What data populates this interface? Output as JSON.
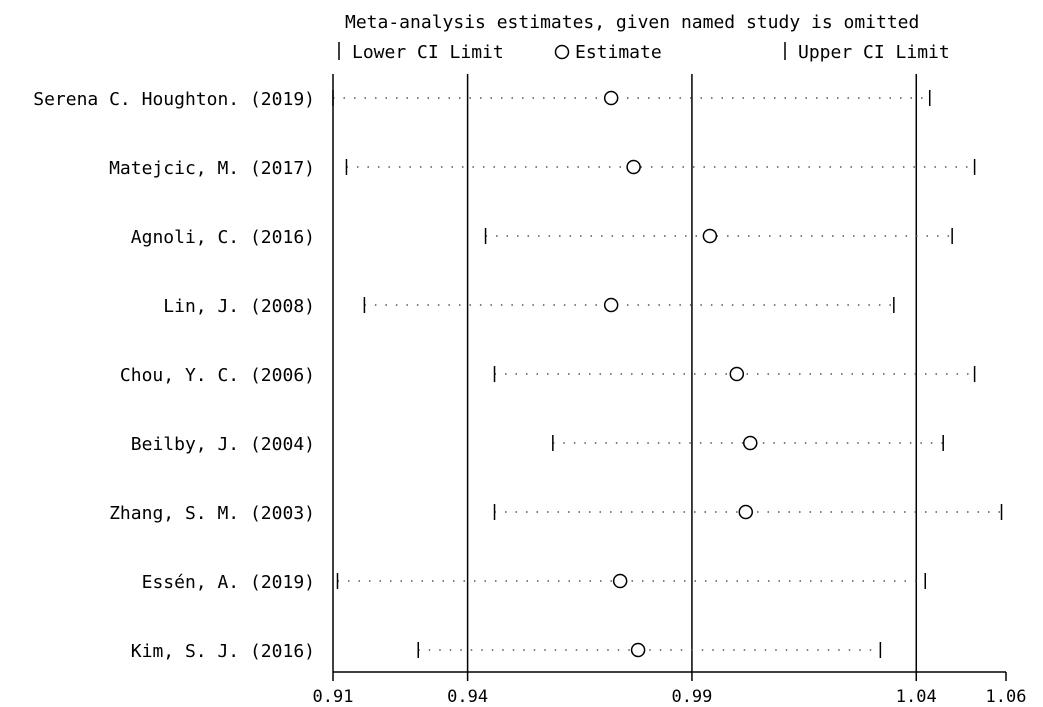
{
  "chart_data": {
    "type": "forest",
    "title": "Meta-analysis estimates, given named study is omitted",
    "legend": {
      "lower_label": "Lower CI Limit",
      "estimate_label": "Estimate",
      "upper_label": "Upper CI Limit"
    },
    "xlim": [
      0.91,
      1.06
    ],
    "x_ticks": [
      0.91,
      0.94,
      0.99,
      1.04,
      1.06
    ],
    "x_tick_labels": [
      "0.91",
      "0.94",
      "0.99",
      "1.04",
      "1.06"
    ],
    "reference_lines": [
      0.94,
      0.99,
      1.04
    ],
    "studies": [
      {
        "label": "Serena C. Houghton. (2019)",
        "lower": 0.91,
        "estimate": 0.972,
        "upper": 1.043
      },
      {
        "label": "Matejcic, M. (2017)",
        "lower": 0.913,
        "estimate": 0.977,
        "upper": 1.053
      },
      {
        "label": "Agnoli, C. (2016)",
        "lower": 0.944,
        "estimate": 0.994,
        "upper": 1.048
      },
      {
        "label": "Lin, J. (2008)",
        "lower": 0.917,
        "estimate": 0.972,
        "upper": 1.035
      },
      {
        "label": "Chou, Y. C. (2006)",
        "lower": 0.946,
        "estimate": 1.0,
        "upper": 1.053
      },
      {
        "label": "Beilby, J. (2004)",
        "lower": 0.959,
        "estimate": 1.003,
        "upper": 1.046
      },
      {
        "label": "Zhang, S. M. (2003)",
        "lower": 0.946,
        "estimate": 1.002,
        "upper": 1.059
      },
      {
        "label": "Essén, A. (2019)",
        "lower": 0.911,
        "estimate": 0.974,
        "upper": 1.042
      },
      {
        "label": "Kim, S. J. (2016)",
        "lower": 0.929,
        "estimate": 0.978,
        "upper": 1.032
      }
    ]
  }
}
